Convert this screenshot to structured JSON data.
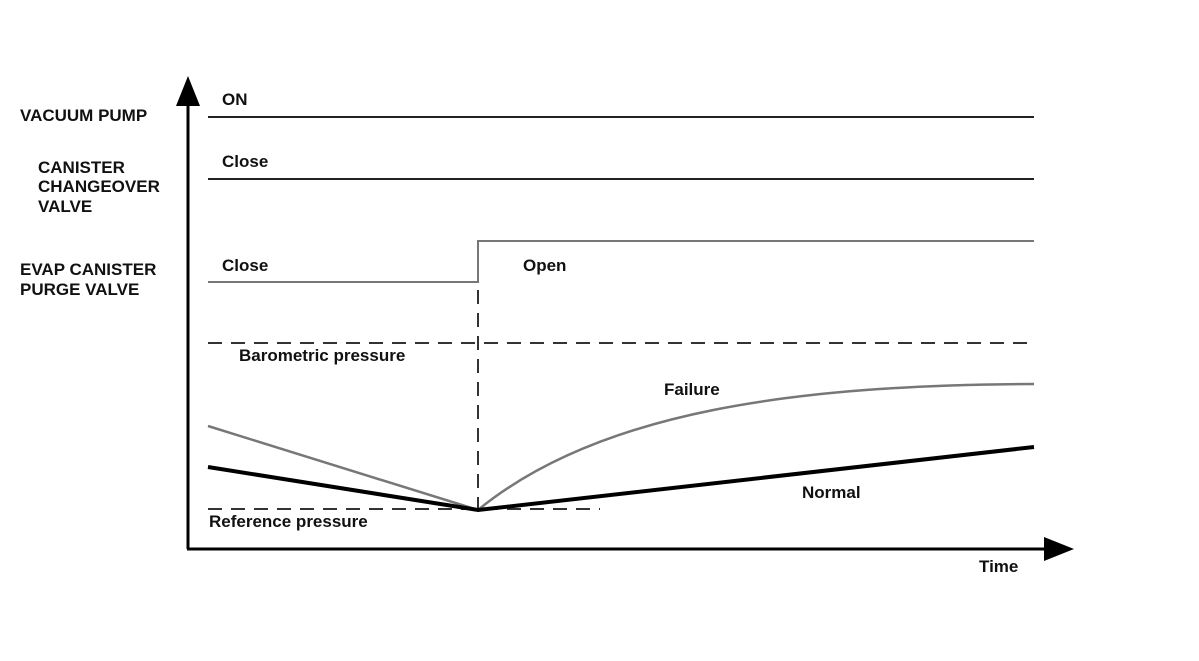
{
  "row_labels": [
    {
      "lines": [
        "VACUUM PUMP"
      ]
    },
    {
      "lines": [
        "CANISTER",
        "CHANGEOVER",
        "VALVE"
      ]
    },
    {
      "lines": [
        "EVAP CANISTER",
        "PURGE VALVE"
      ]
    }
  ],
  "state_labels": {
    "vacuum_pump_on": "ON",
    "changeover_close": "Close",
    "purge_close": "Close",
    "purge_open": "Open"
  },
  "pressure_labels": {
    "barometric": "Barometric pressure",
    "reference": "Reference pressure",
    "failure": "Failure",
    "normal": "Normal"
  },
  "axis": {
    "x_label": "Time"
  }
}
